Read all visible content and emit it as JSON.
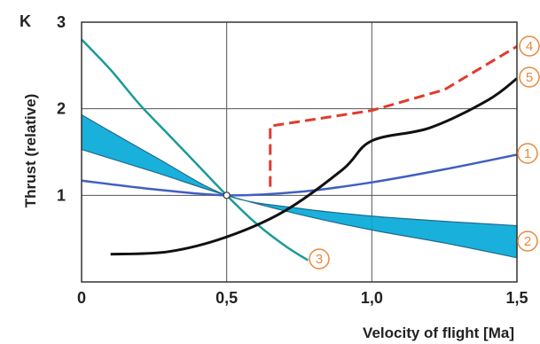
{
  "chart_data": {
    "type": "line",
    "title": "",
    "y_unit_label": "K",
    "xlabel": "Velocity of flight [Ma]",
    "ylabel": "Thrust (relative)",
    "xlim": [
      0,
      1.5
    ],
    "ylim": [
      0,
      3
    ],
    "x_ticks": [
      {
        "value": 0,
        "label": "0"
      },
      {
        "value": 0.5,
        "label": "0,5"
      },
      {
        "value": 1.0,
        "label": "1,0"
      },
      {
        "value": 1.5,
        "label": "1,5"
      }
    ],
    "y_ticks": [
      {
        "value": 1,
        "label": "1"
      },
      {
        "value": 2,
        "label": "2"
      },
      {
        "value": 3,
        "label": "3"
      }
    ],
    "grid": true,
    "series": [
      {
        "marker": "1",
        "color": "#3f5fc0",
        "style": "solid",
        "x": [
          0,
          0.25,
          0.5,
          0.75,
          1.0,
          1.25,
          1.5
        ],
        "y": [
          1.17,
          1.07,
          1.0,
          1.04,
          1.15,
          1.3,
          1.47
        ]
      },
      {
        "marker": "2",
        "color": "#00a8d8",
        "style": "band",
        "x": [
          0,
          0.25,
          0.5,
          0.75,
          1.0,
          1.25,
          1.5
        ],
        "y_upper": [
          1.93,
          1.45,
          1.0,
          0.85,
          0.76,
          0.7,
          0.65
        ],
        "y_lower": [
          1.53,
          1.27,
          1.0,
          0.78,
          0.6,
          0.45,
          0.28
        ]
      },
      {
        "marker": "3",
        "color": "#1a9a98",
        "style": "solid",
        "x": [
          0,
          0.1,
          0.2,
          0.3,
          0.4,
          0.5,
          0.6,
          0.7,
          0.78
        ],
        "y": [
          2.8,
          2.45,
          2.05,
          1.7,
          1.35,
          1.0,
          0.68,
          0.42,
          0.25
        ]
      },
      {
        "marker": "4",
        "color": "#e03b2c",
        "style": "dashed",
        "x": [
          0.65,
          0.65,
          1.0,
          1.25,
          1.5
        ],
        "y": [
          1.1,
          1.8,
          1.98,
          2.22,
          2.72
        ]
      },
      {
        "marker": "5",
        "color": "#111111",
        "style": "solid",
        "x": [
          0.1,
          0.3,
          0.5,
          0.7,
          0.9,
          1.0,
          1.2,
          1.4,
          1.5
        ],
        "y": [
          0.32,
          0.35,
          0.52,
          0.82,
          1.3,
          1.63,
          1.78,
          2.1,
          2.35
        ]
      }
    ]
  }
}
